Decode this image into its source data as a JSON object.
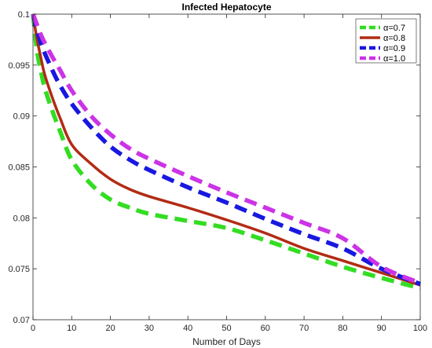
{
  "chart_data": {
    "type": "line",
    "title": "Infected Hepatocyte",
    "xlabel": "Number of Days",
    "ylabel": "",
    "xlim": [
      0,
      100
    ],
    "ylim": [
      0.07,
      0.1
    ],
    "xticks": [
      "0",
      "10",
      "20",
      "30",
      "40",
      "50",
      "60",
      "70",
      "80",
      "90",
      "100"
    ],
    "yticks": [
      "0.07",
      "0.075",
      "0.08",
      "0.085",
      "0.09",
      "0.095",
      "0.1"
    ],
    "grid": false,
    "legend_position": "top-right",
    "x": [
      0,
      1,
      2,
      3,
      5,
      7,
      10,
      15,
      20,
      25,
      30,
      40,
      50,
      60,
      70,
      80,
      90,
      100
    ],
    "series": [
      {
        "name": "α=0.7",
        "color": "#33dd22",
        "style": "dashed",
        "values": [
          0.1,
          0.0965,
          0.0945,
          0.0928,
          0.0905,
          0.0885,
          0.0857,
          0.0833,
          0.0818,
          0.081,
          0.0804,
          0.0797,
          0.079,
          0.0778,
          0.0765,
          0.0752,
          0.0741,
          0.0731
        ]
      },
      {
        "name": "α=0.8",
        "color": "#b22b14",
        "style": "solid",
        "values": [
          0.1,
          0.0976,
          0.0958,
          0.0941,
          0.0918,
          0.0898,
          0.0872,
          0.0853,
          0.0838,
          0.0828,
          0.0821,
          0.081,
          0.0798,
          0.0785,
          0.077,
          0.0758,
          0.0746,
          0.0734
        ]
      },
      {
        "name": "α=0.9",
        "color": "#1818e0",
        "style": "dashed",
        "values": [
          0.1,
          0.0985,
          0.0972,
          0.0962,
          0.0945,
          0.093,
          0.0912,
          0.0889,
          0.087,
          0.0857,
          0.0847,
          0.083,
          0.0815,
          0.0799,
          0.0784,
          0.077,
          0.075,
          0.0735
        ]
      },
      {
        "name": "α=1.0",
        "color": "#cc33e6",
        "style": "dashed",
        "values": [
          0.1,
          0.099,
          0.098,
          0.0972,
          0.0958,
          0.0945,
          0.0925,
          0.09,
          0.0882,
          0.0868,
          0.0858,
          0.0841,
          0.0825,
          0.081,
          0.0795,
          0.078,
          0.0752,
          0.0736
        ]
      }
    ]
  }
}
